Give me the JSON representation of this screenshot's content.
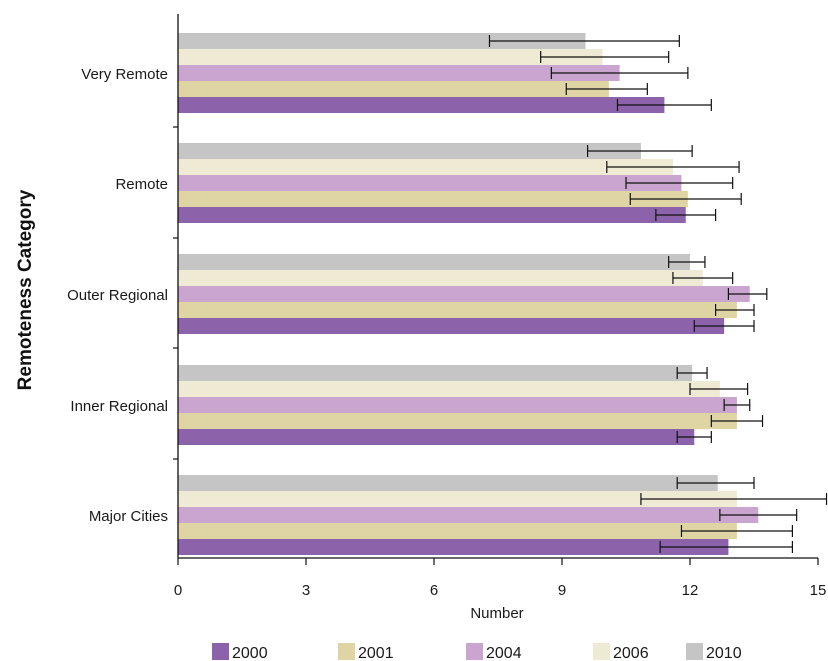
{
  "chart_data": {
    "type": "bar",
    "orientation": "horizontal",
    "ylabel": "Remoteness Category",
    "xlabel": "Number",
    "xlim": [
      0,
      15
    ],
    "xticks": [
      0,
      3,
      6,
      9,
      12,
      15
    ],
    "grid": false,
    "legend_position": "bottom",
    "categories": [
      "Major Cities",
      "Inner Regional",
      "Outer Regional",
      "Remote",
      "Very Remote"
    ],
    "series": [
      {
        "name": "2000",
        "color": "#8c62ab",
        "values": [
          12.9,
          12.1,
          12.8,
          11.9,
          11.4
        ],
        "error": [
          [
            11.3,
            14.4
          ],
          [
            11.7,
            12.5
          ],
          [
            12.1,
            13.5
          ],
          [
            11.2,
            12.6
          ],
          [
            10.3,
            12.5
          ]
        ]
      },
      {
        "name": "2001",
        "color": "#dfd5a4",
        "values": [
          13.1,
          13.1,
          13.1,
          11.95,
          10.1
        ],
        "error": [
          [
            11.8,
            14.4
          ],
          [
            12.5,
            13.7
          ],
          [
            12.6,
            13.5
          ],
          [
            10.6,
            13.2
          ],
          [
            9.1,
            11.0
          ]
        ]
      },
      {
        "name": "2004",
        "color": "#c9a5cf",
        "values": [
          13.6,
          13.1,
          13.4,
          11.8,
          10.35
        ],
        "error": [
          [
            12.7,
            14.5
          ],
          [
            12.8,
            13.4
          ],
          [
            12.9,
            13.8
          ],
          [
            10.5,
            13.0
          ],
          [
            8.75,
            11.95
          ]
        ]
      },
      {
        "name": "2006",
        "color": "#eeead3",
        "values": [
          13.1,
          12.7,
          12.3,
          11.6,
          9.95
        ],
        "error": [
          [
            10.85,
            15.2
          ],
          [
            12.0,
            13.35
          ],
          [
            11.6,
            13.0
          ],
          [
            10.05,
            13.15
          ],
          [
            8.5,
            11.5
          ]
        ]
      },
      {
        "name": "2010",
        "color": "#c5c5c5",
        "values": [
          12.65,
          12.05,
          12.0,
          10.85,
          9.55
        ],
        "error": [
          [
            11.7,
            13.5
          ],
          [
            11.7,
            12.4
          ],
          [
            11.5,
            12.35
          ],
          [
            9.6,
            12.05
          ],
          [
            7.3,
            11.75
          ]
        ]
      }
    ]
  }
}
